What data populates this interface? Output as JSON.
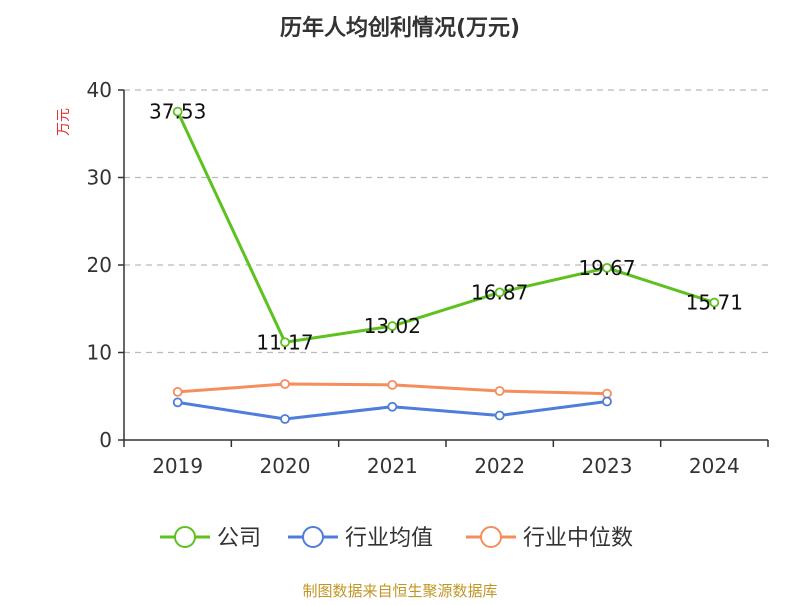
{
  "title": "历年人均创利情况(万元)",
  "source": "制图数据来自恒生聚源数据库",
  "colors": {
    "company": "#5dc11f",
    "industry_mean": "#4e7ddb",
    "industry_median": "#f58d5c",
    "source": "#c39624",
    "unit": "#e03333",
    "grid": "#bbbbbb",
    "axis": "#333333"
  },
  "chart_data": {
    "type": "line",
    "title": "历年人均创利情况(万元)",
    "ylabel": "万元",
    "xlabel": "",
    "categories": [
      "2019",
      "2020",
      "2021",
      "2022",
      "2023",
      "2024"
    ],
    "ylim": [
      0,
      40
    ],
    "yticks": [
      0,
      10,
      20,
      30,
      40
    ],
    "grid": true,
    "legend_position": "bottom",
    "series": [
      {
        "name": "公司",
        "color": "#5dc11f",
        "values": [
          37.53,
          11.17,
          13.02,
          16.87,
          19.67,
          15.71
        ],
        "labels": [
          "37.53",
          "11.17",
          "13.02",
          "16.87",
          "19.67",
          "15.71"
        ]
      },
      {
        "name": "行业均值",
        "color": "#4e7ddb",
        "values": [
          4.3,
          2.4,
          3.8,
          2.8,
          4.4,
          null
        ]
      },
      {
        "name": "行业中位数",
        "color": "#f58d5c",
        "values": [
          5.5,
          6.4,
          6.3,
          5.6,
          5.3,
          null
        ]
      }
    ]
  }
}
